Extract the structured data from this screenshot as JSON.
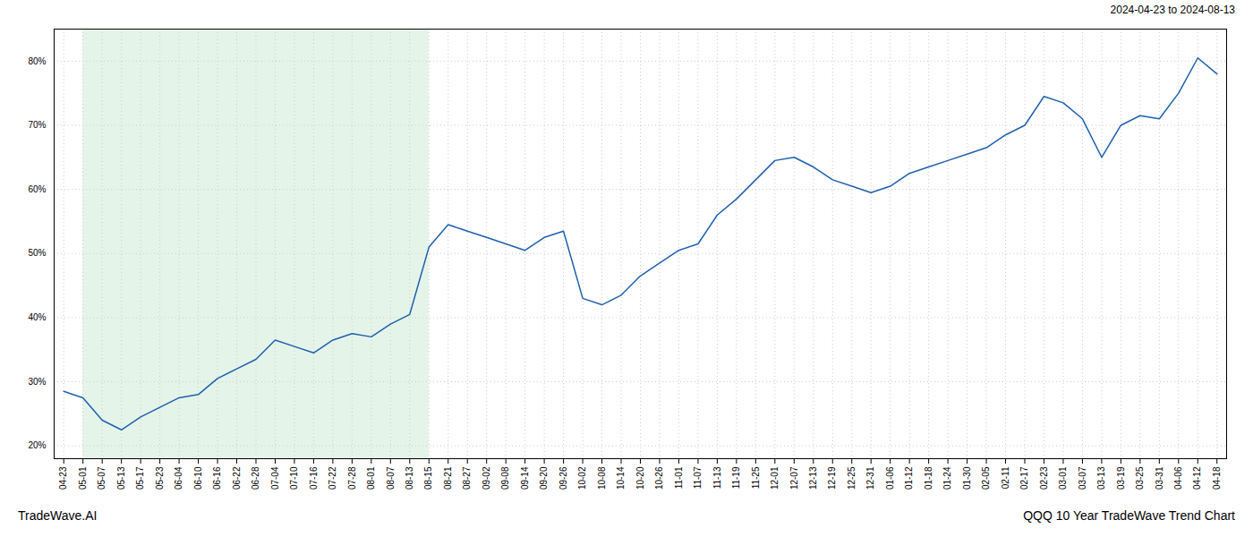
{
  "chart_data": {
    "type": "line",
    "annotations": [
      "2024-04-23 to 2024-08-13",
      "TradeWave.AI",
      "QQQ 10 Year TradeWave Trend Chart"
    ],
    "categories": [
      "04-23",
      "05-01",
      "05-07",
      "05-13",
      "05-17",
      "05-23",
      "06-04",
      "06-10",
      "06-16",
      "06-22",
      "06-28",
      "07-04",
      "07-10",
      "07-16",
      "07-22",
      "07-28",
      "08-01",
      "08-07",
      "08-13",
      "08-15",
      "08-21",
      "08-27",
      "09-02",
      "09-08",
      "09-14",
      "09-20",
      "09-26",
      "10-02",
      "10-08",
      "10-14",
      "10-20",
      "10-26",
      "11-01",
      "11-07",
      "11-13",
      "11-19",
      "11-25",
      "12-01",
      "12-07",
      "12-13",
      "12-19",
      "12-25",
      "12-31",
      "01-06",
      "01-12",
      "01-18",
      "01-24",
      "01-30",
      "02-05",
      "02-11",
      "02-17",
      "02-23",
      "03-01",
      "03-07",
      "03-13",
      "03-19",
      "03-25",
      "03-31",
      "04-06",
      "04-12",
      "04-18"
    ],
    "values": [
      28.5,
      27.5,
      24.0,
      22.5,
      24.5,
      26.0,
      27.5,
      28.0,
      30.5,
      32.0,
      33.5,
      36.5,
      35.5,
      34.5,
      36.5,
      37.5,
      37.0,
      39.0,
      40.5,
      51.0,
      54.5,
      53.5,
      52.5,
      51.5,
      50.5,
      52.5,
      53.5,
      43.0,
      42.0,
      43.5,
      46.5,
      48.5,
      50.5,
      51.5,
      56.0,
      58.5,
      61.5,
      64.5,
      65.0,
      63.5,
      61.5,
      60.5,
      59.5,
      60.5,
      62.5,
      63.5,
      64.5,
      65.5,
      66.5,
      68.5,
      70.0,
      74.5,
      73.5,
      71.0,
      65.0,
      70.0,
      71.5,
      71.0,
      75.0,
      80.5,
      78.0
    ],
    "color": "#1f5fad",
    "shaded_region": {
      "from": "05-01",
      "to": "08-15",
      "color": "#d4edda"
    },
    "ylim": [
      18,
      85
    ],
    "yticks": [
      {
        "value": 20,
        "label": "20%"
      },
      {
        "value": 30,
        "label": "30%"
      },
      {
        "value": 40,
        "label": "40%"
      },
      {
        "value": 50,
        "label": "50%"
      },
      {
        "value": 60,
        "label": "60%"
      },
      {
        "value": 70,
        "label": "70%"
      },
      {
        "value": 80,
        "label": "80%"
      }
    ],
    "grid": true
  }
}
